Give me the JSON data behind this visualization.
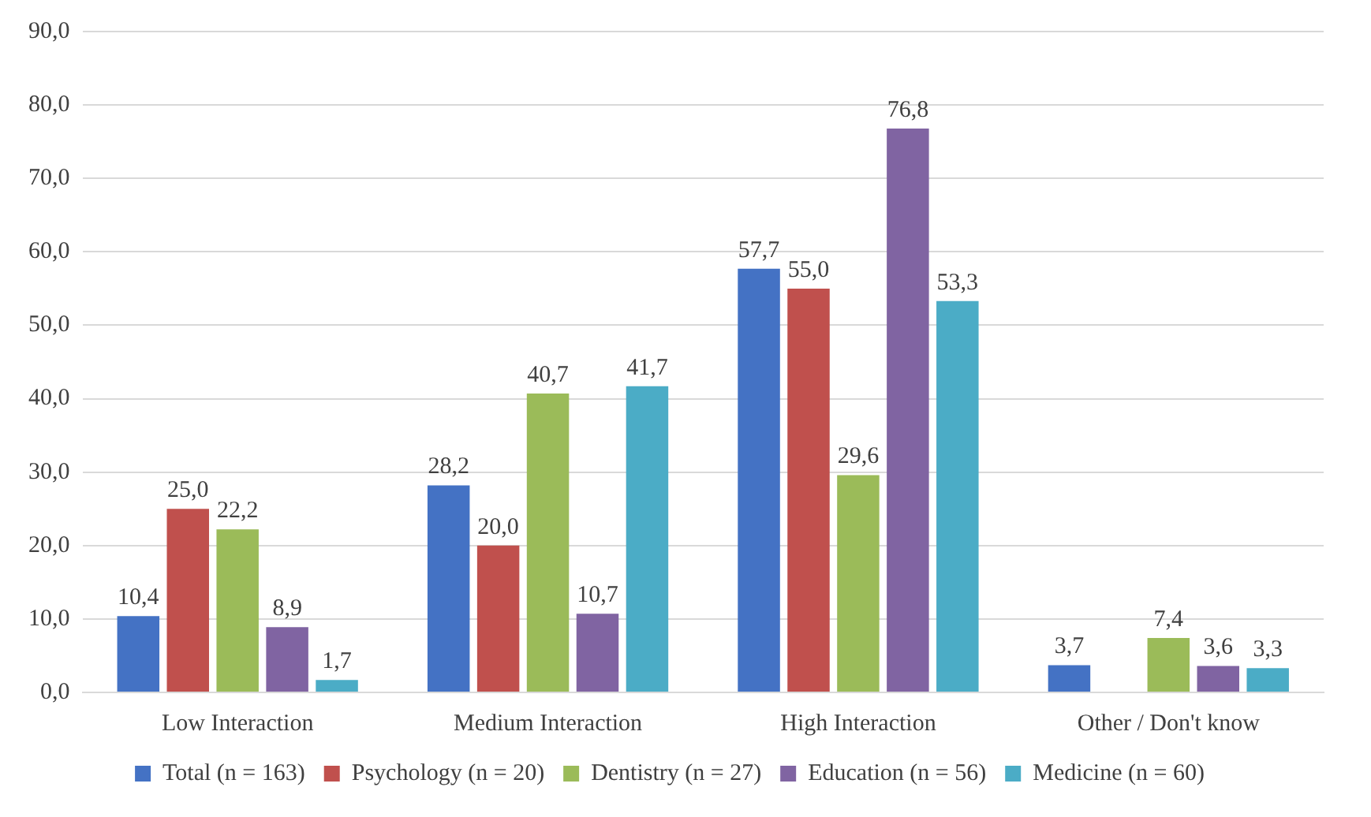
{
  "chart_data": {
    "type": "bar",
    "categories": [
      "Low Interaction",
      "Medium Interaction",
      "High Interaction",
      "Other / Don't know"
    ],
    "series": [
      {
        "name": "Total (n = 163)",
        "color": "#4472c4",
        "values": [
          10.4,
          28.2,
          57.7,
          3.7
        ],
        "value_labels": [
          "10,4",
          "28,2",
          "57,7",
          "3,7"
        ]
      },
      {
        "name": "Psychology (n = 20)",
        "color": "#c0504d",
        "values": [
          25.0,
          20.0,
          55.0,
          null
        ],
        "value_labels": [
          "25,0",
          "20,0",
          "55,0",
          null
        ]
      },
      {
        "name": "Dentistry (n = 27)",
        "color": "#9bbb59",
        "values": [
          22.2,
          40.7,
          29.6,
          7.4
        ],
        "value_labels": [
          "22,2",
          "40,7",
          "29,6",
          "7,4"
        ]
      },
      {
        "name": "Education (n = 56)",
        "color": "#8064a2",
        "values": [
          8.9,
          10.7,
          76.8,
          3.6
        ],
        "value_labels": [
          "8,9",
          "10,7",
          "76,8",
          "3,6"
        ]
      },
      {
        "name": "Medicine (n = 60)",
        "color": "#4bacc6",
        "values": [
          1.7,
          41.7,
          53.3,
          3.3
        ],
        "value_labels": [
          "1,7",
          "41,7",
          "53,3",
          "3,3"
        ]
      }
    ],
    "ylim": [
      0,
      90
    ],
    "yticks": [
      {
        "value": 0,
        "label": "0,0"
      },
      {
        "value": 10,
        "label": "10,0"
      },
      {
        "value": 20,
        "label": "20,0"
      },
      {
        "value": 30,
        "label": "30,0"
      },
      {
        "value": 40,
        "label": "40,0"
      },
      {
        "value": 50,
        "label": "50,0"
      },
      {
        "value": 60,
        "label": "60,0"
      },
      {
        "value": 70,
        "label": "70,0"
      },
      {
        "value": 80,
        "label": "80,0"
      },
      {
        "value": 90,
        "label": "90,0"
      }
    ],
    "grid": "y",
    "legend": "bottom"
  }
}
